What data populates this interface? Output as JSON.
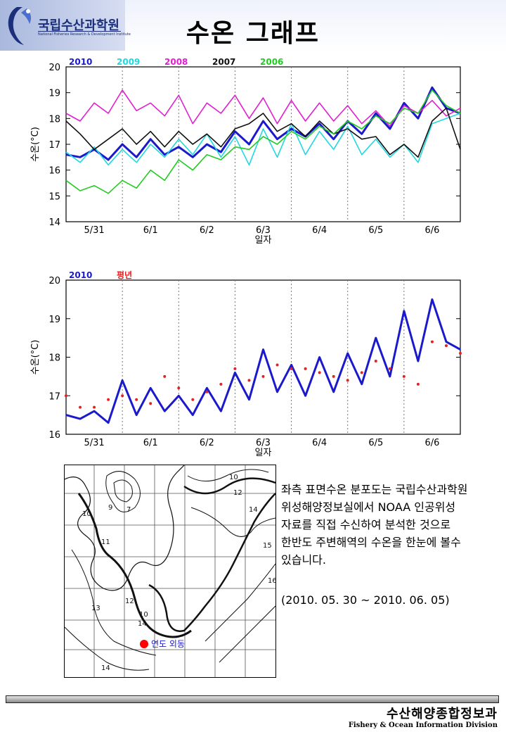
{
  "header": {
    "org_name": "국립수산과학원",
    "org_sub": "National Fisheries Research & Development Institute",
    "title": "수온 그래프"
  },
  "chart_data": [
    {
      "type": "line",
      "title": "",
      "xlabel": "일자",
      "ylabel": "수온(°C)",
      "ylim": [
        14,
        20
      ],
      "yticks": [
        14,
        15,
        16,
        17,
        18,
        19,
        20
      ],
      "tick_labels": [
        "5/31",
        "6/1",
        "6/2",
        "6/3",
        "6/4",
        "6/5",
        "6/6"
      ],
      "x_range": [
        30,
        37
      ],
      "x": [
        30.0,
        30.25,
        30.5,
        30.75,
        31.0,
        31.25,
        31.5,
        31.75,
        32.0,
        32.25,
        32.5,
        32.75,
        33.0,
        33.25,
        33.5,
        33.75,
        34.0,
        34.25,
        34.5,
        34.75,
        35.0,
        35.25,
        35.5,
        35.75,
        36.0,
        36.25,
        36.5,
        36.75,
        37.0
      ],
      "series": [
        {
          "name": "2010",
          "color": "#1a1acc",
          "values": [
            16.6,
            16.5,
            16.8,
            16.4,
            17.0,
            16.5,
            17.2,
            16.6,
            16.9,
            16.5,
            17.0,
            16.7,
            17.5,
            17.0,
            17.9,
            17.2,
            17.6,
            17.3,
            17.8,
            17.2,
            17.9,
            17.4,
            18.2,
            17.6,
            18.6,
            18.0,
            19.2,
            18.4,
            18.2
          ]
        },
        {
          "name": "2009",
          "color": "#22d8e0",
          "values": [
            16.7,
            16.3,
            16.9,
            16.2,
            16.8,
            16.3,
            17.0,
            16.5,
            17.2,
            16.6,
            17.4,
            16.5,
            17.3,
            16.2,
            17.6,
            16.5,
            17.8,
            16.6,
            17.5,
            16.8,
            17.7,
            16.6,
            17.2,
            16.5,
            17.0,
            16.3,
            17.8,
            18.0,
            18.2
          ]
        },
        {
          "name": "2008",
          "color": "#e020d0",
          "values": [
            18.2,
            17.9,
            18.6,
            18.2,
            19.1,
            18.3,
            18.6,
            18.1,
            18.9,
            17.8,
            18.6,
            18.2,
            18.9,
            18.0,
            18.8,
            17.8,
            18.7,
            17.9,
            18.6,
            17.9,
            18.5,
            17.8,
            18.3,
            17.7,
            18.5,
            18.2,
            18.7,
            18.1,
            18.4
          ]
        },
        {
          "name": "2007",
          "color": "#111111",
          "values": [
            17.9,
            17.4,
            16.8,
            17.2,
            17.6,
            17.0,
            17.5,
            16.9,
            17.5,
            17.0,
            17.4,
            16.9,
            17.6,
            17.8,
            18.2,
            17.5,
            17.8,
            17.3,
            17.9,
            17.4,
            17.6,
            17.2,
            17.3,
            16.6,
            17.0,
            16.5,
            17.9,
            18.4,
            16.8
          ]
        },
        {
          "name": "2006",
          "color": "#22cc22",
          "values": [
            15.6,
            15.2,
            15.4,
            15.1,
            15.6,
            15.3,
            16.0,
            15.6,
            16.4,
            16.0,
            16.6,
            16.4,
            16.9,
            16.8,
            17.3,
            17.0,
            17.5,
            17.2,
            17.7,
            17.4,
            17.9,
            17.6,
            18.1,
            17.8,
            18.4,
            18.2,
            19.1,
            18.5,
            18.2
          ]
        }
      ]
    },
    {
      "type": "line",
      "title": "",
      "xlabel": "일자",
      "ylabel": "수온(°C)",
      "ylim": [
        16,
        20
      ],
      "yticks": [
        16,
        17,
        18,
        19,
        20
      ],
      "tick_labels": [
        "5/31",
        "6/1",
        "6/2",
        "6/3",
        "6/4",
        "6/5",
        "6/6"
      ],
      "x_range": [
        30,
        37
      ],
      "x": [
        30.0,
        30.25,
        30.5,
        30.75,
        31.0,
        31.25,
        31.5,
        31.75,
        32.0,
        32.25,
        32.5,
        32.75,
        33.0,
        33.25,
        33.5,
        33.75,
        34.0,
        34.25,
        34.5,
        34.75,
        35.0,
        35.25,
        35.5,
        35.75,
        36.0,
        36.25,
        36.5,
        36.75,
        37.0
      ],
      "series": [
        {
          "name": "2010",
          "color": "#1a1acc",
          "style": "line",
          "values": [
            16.5,
            16.4,
            16.6,
            16.3,
            17.4,
            16.5,
            17.2,
            16.6,
            17.0,
            16.5,
            17.2,
            16.6,
            17.6,
            16.9,
            18.2,
            17.1,
            17.8,
            17.0,
            18.0,
            17.1,
            18.1,
            17.3,
            18.5,
            17.5,
            19.2,
            17.9,
            19.5,
            18.4,
            18.2
          ]
        },
        {
          "name": "평년",
          "color": "#e82020",
          "style": "dots",
          "values": [
            17.0,
            16.7,
            16.7,
            16.9,
            17.0,
            16.9,
            16.8,
            17.5,
            17.2,
            16.9,
            17.1,
            17.3,
            17.7,
            17.4,
            17.5,
            17.8,
            17.7,
            17.7,
            17.6,
            17.5,
            17.4,
            17.6,
            17.9,
            17.7,
            17.5,
            17.3,
            18.4,
            18.3,
            18.1
          ]
        }
      ]
    }
  ],
  "map": {
    "contour_labels": [
      "10",
      "9",
      "7",
      "11",
      "10",
      "12",
      "13",
      "14",
      "14",
      "15",
      "16",
      "12",
      "13",
      "12",
      "14",
      "10"
    ],
    "station_label": "연도 외동",
    "marker_color": "#ff0000"
  },
  "description": {
    "text": "좌측 표면수온 분포도는 국립수산과학원 위성해양정보실에서 NOAA 인공위성 자료를 직접 수신하여 분석한 것으로 한반도 주변해역의 수온을 한눈에 볼수 있습니다.",
    "period": "(2010. 05. 30 ~ 2010. 06. 05)"
  },
  "footer": {
    "org": "수산해양종합정보과",
    "division": "Fishery & Ocean Information Division"
  }
}
